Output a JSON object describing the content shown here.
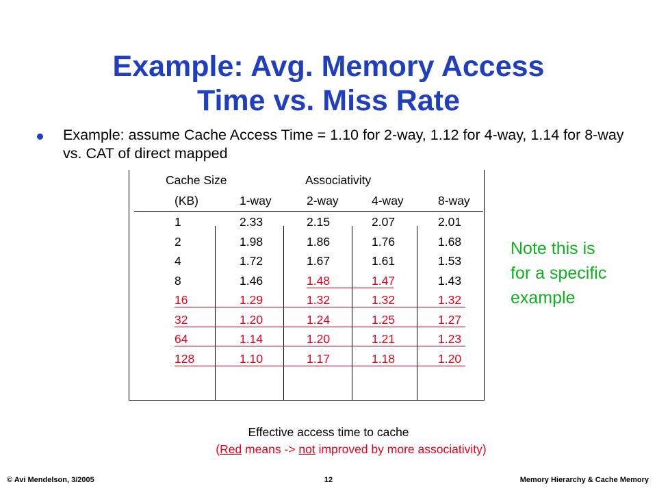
{
  "slide": {
    "title_line1": "Example: Avg. Memory Access",
    "title_line2": "Time vs. Miss Rate",
    "bullet": "Example: assume Cache Access Time = 1.10 for 2-way, 1.12 for 4-way, 1.14 for 8-way vs. CAT of direct mapped"
  },
  "table": {
    "header_cache_size": "Cache Size",
    "header_associativity": "Associativity",
    "columns": [
      "(KB)",
      "1-way",
      "2-way",
      "4-way",
      "8-way"
    ],
    "rows": [
      [
        "1",
        "2.33",
        "2.15",
        "2.07",
        "2.01"
      ],
      [
        "2",
        "1.98",
        "1.86",
        "1.76",
        "1.68"
      ],
      [
        "4",
        "1.72",
        "1.67",
        "1.61",
        "1.53"
      ],
      [
        "8",
        "1.46",
        "1.48",
        "1.47",
        "1.43"
      ],
      [
        "16",
        "1.29",
        "1.32",
        "1.32",
        "1.32"
      ],
      [
        "32",
        "1.20",
        "1.24",
        "1.25",
        "1.27"
      ],
      [
        "64",
        "1.14",
        "1.20",
        "1.21",
        "1.23"
      ],
      [
        "128",
        "1.10",
        "1.17",
        "1.18",
        "1.20"
      ]
    ]
  },
  "note": [
    "Note this is",
    "for a specific",
    "example"
  ],
  "caption": {
    "line1": "Effective access time to cache",
    "line2_a": "(",
    "line2_red": "Red",
    "line2_b": " means -> ",
    "line2_not": "not",
    "line2_c": " improved by more associativity)"
  },
  "footer": {
    "left": "© Avi Mendelson, 3/2005",
    "center": "12",
    "right": "Memory Hierarchy  &  Cache Memory"
  },
  "colors": {
    "title": "#1f3fbf",
    "red": "#e8001c",
    "note": "#10b020"
  }
}
